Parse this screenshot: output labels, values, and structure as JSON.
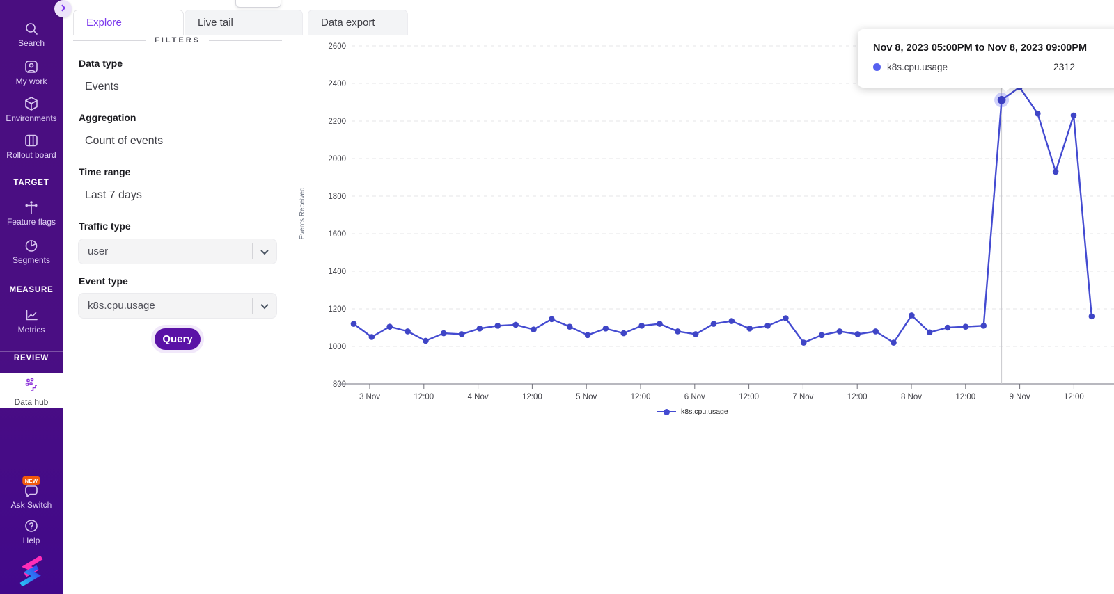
{
  "sidebar": {
    "items": [
      {
        "label": "Search"
      },
      {
        "label": "My work"
      },
      {
        "label": "Environments"
      },
      {
        "label": "Rollout board"
      },
      {
        "label": "Feature flags"
      },
      {
        "label": "Segments"
      },
      {
        "label": "Metrics"
      },
      {
        "label": "Data hub"
      },
      {
        "label": "Ask Switch"
      },
      {
        "label": "Help"
      }
    ],
    "section_headers": [
      {
        "label": "TARGET"
      },
      {
        "label": "MEASURE"
      },
      {
        "label": "REVIEW"
      }
    ],
    "new_badge": "NEW",
    "selected_item": "Data hub"
  },
  "tabs": [
    {
      "label": "Explore",
      "active": true
    },
    {
      "label": "Live tail",
      "active": false
    },
    {
      "label": "Data export",
      "active": false
    }
  ],
  "filters": {
    "divider_label": "FILTERS",
    "fields": [
      {
        "label": "Data type",
        "value": "Events",
        "control": "text"
      },
      {
        "label": "Aggregation",
        "value": "Count of events",
        "control": "text"
      },
      {
        "label": "Time range",
        "value": "Last 7 days",
        "control": "text"
      },
      {
        "label": "Traffic type",
        "value": "user",
        "control": "select"
      },
      {
        "label": "Event type",
        "value": "k8s.cpu.usage",
        "control": "select"
      }
    ],
    "query_button": "Query"
  },
  "tooltip": {
    "title": "Nov 8, 2023 05:00PM to Nov 8, 2023 09:00PM",
    "series": "k8s.cpu.usage",
    "value": "2312"
  },
  "chart_data": {
    "type": "line",
    "title": "",
    "xlabel": "",
    "ylabel": "Events Received",
    "ylim": [
      800,
      2600
    ],
    "y_ticks": [
      800,
      1000,
      1200,
      1400,
      1600,
      1800,
      2000,
      2200,
      2400,
      2600
    ],
    "x_tick_labels": [
      "3 Nov",
      "12:00",
      "4 Nov",
      "12:00",
      "5 Nov",
      "12:00",
      "6 Nov",
      "12:00",
      "7 Nov",
      "12:00",
      "8 Nov",
      "12:00",
      "9 Nov",
      "12:00"
    ],
    "grid": "horizontal-dashed",
    "legend_position": "bottom",
    "series": [
      {
        "name": "k8s.cpu.usage",
        "bucket_hours": 4,
        "values": [
          1120,
          1050,
          1105,
          1080,
          1030,
          1070,
          1065,
          1095,
          1110,
          1115,
          1090,
          1145,
          1105,
          1060,
          1095,
          1070,
          1110,
          1120,
          1080,
          1065,
          1120,
          1135,
          1095,
          1110,
          1150,
          1020,
          1060,
          1080,
          1065,
          1080,
          1020,
          1165,
          1075,
          1100,
          1105,
          1110,
          2312,
          2380,
          2240,
          1930,
          2230,
          1160
        ]
      }
    ],
    "highlight_index": 36,
    "highlight_value": 2312,
    "colors": {
      "line": "#444bd1",
      "dot": "#3f45c6",
      "highlight_dot": "#3b3fc0",
      "highlight_halo": "rgba(99,102,241,0.30)",
      "crosshair": "#c8c8cd",
      "grid": "#e4e4e7",
      "axis": "#a1a1aa"
    }
  },
  "brand": {
    "accent_purple": "#5a12a6",
    "sidebar_purple": "#4a0e80",
    "active_tab_color": "#7c3aed"
  }
}
